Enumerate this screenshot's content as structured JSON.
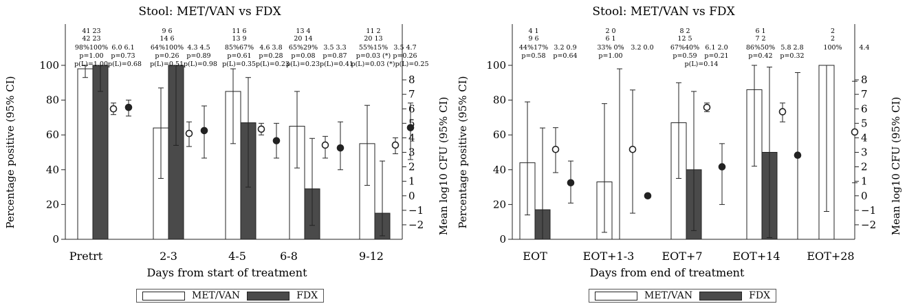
{
  "legend": {
    "series_a": "MET/VAN",
    "series_b": "FDX"
  },
  "chart_data": [
    {
      "type": "bar",
      "title": "Stool: MET/VAN vs FDX",
      "xlabel": "Days from start of treatment",
      "ylabel": "Percentage positive (95% CI)",
      "y2label": "Mean log10 CFU (95% CI)",
      "ylim": [
        0,
        100
      ],
      "y2lim": [
        -3,
        9
      ],
      "yticks": [
        "0",
        "20",
        "40",
        "60",
        "80",
        "100"
      ],
      "y2ticks": [
        "−2",
        "−1",
        "0",
        "1",
        "2",
        "3",
        "4",
        "5",
        "6",
        "7",
        "8"
      ],
      "categories": [
        "Pretrt",
        "2-3",
        "4-5",
        "6-8",
        "9-12"
      ],
      "series": [
        {
          "name": "MET/VAN",
          "values": [
            98,
            64,
            85,
            65,
            55
          ],
          "ci_low": [
            93,
            35,
            55,
            41,
            31
          ],
          "ci_high": [
            100,
            87,
            98,
            85,
            77
          ]
        },
        {
          "name": "FDX",
          "values": [
            100,
            100,
            67,
            29,
            15
          ],
          "ci_low": [
            85,
            54,
            30,
            8,
            2
          ],
          "ci_high": [
            100,
            100,
            93,
            58,
            45
          ]
        }
      ],
      "cfu": [
        {
          "name": "MET/VAN",
          "values": [
            6.0,
            4.3,
            4.6,
            3.5,
            3.5
          ],
          "ci_low": [
            5.6,
            3.4,
            4.2,
            2.6,
            2.9
          ],
          "ci_high": [
            6.4,
            5.1,
            5.0,
            4.1,
            4.0
          ]
        },
        {
          "name": "FDX",
          "values": [
            6.1,
            4.5,
            3.8,
            3.3,
            4.7
          ],
          "ci_low": [
            5.5,
            2.6,
            2.6,
            1.8,
            2.5
          ],
          "ci_high": [
            6.6,
            6.2,
            5.0,
            5.1,
            6.4
          ]
        }
      ],
      "annotations": [
        {
          "n": [
            "41 23",
            "42 23"
          ],
          "pct": "98%100%",
          "p": "p=1.00",
          "cfu": "6.0  6.1",
          "cfu_p": "p=0.73",
          "pl": "p(L)=1.00p(L)=0.68"
        },
        {
          "n": [
            "9  6",
            "14  6"
          ],
          "pct": "64%100%",
          "p": "p=0.26",
          "cfu": "4.3  4.5",
          "cfu_p": "p=0.89",
          "pl": "p(L)=0.51p(L)=0.98"
        },
        {
          "n": [
            "11  6",
            "13  9"
          ],
          "pct": "85%67%",
          "p": "p=0.61",
          "cfu": "4.6  3.8",
          "cfu_p": "p=0.28",
          "pl": "p(L)=0.35p(L)=0.23"
        },
        {
          "n": [
            "13  4",
            "20  14"
          ],
          "pct": "65%29%",
          "p": "p=0.08",
          "cfu": "3.5  3.3",
          "cfu_p": "p=0.87",
          "pl": "p(L)=0.23p(L)=0.41"
        },
        {
          "n": [
            "11  2",
            "20  13"
          ],
          "pct": "55%15%",
          "p": "p=0.03 (*)",
          "cfu": "3.5  4.7",
          "cfu_p": "p=0.26",
          "pl": "p(L)=0.03 (*)p(L)=0.25"
        }
      ],
      "grid": false,
      "legend_position": "bottom"
    },
    {
      "type": "bar",
      "title": "Stool: MET/VAN vs FDX",
      "xlabel": "Days from end of treatment",
      "ylabel": "Percentage positive (95% CI)",
      "y2label": "Mean log10 CFU (95% CI)",
      "ylim": [
        0,
        100
      ],
      "y2lim": [
        -3,
        9
      ],
      "yticks": [
        "0",
        "20",
        "40",
        "60",
        "80",
        "100"
      ],
      "y2ticks": [
        "−2",
        "−1",
        "0",
        "1",
        "2",
        "3",
        "4",
        "5",
        "6",
        "7",
        "8"
      ],
      "categories": [
        "EOT",
        "EOT+1-3",
        "EOT+7",
        "EOT+14",
        "EOT+28"
      ],
      "series": [
        {
          "name": "MET/VAN",
          "values": [
            44,
            33,
            67,
            86,
            100
          ],
          "ci_low": [
            14,
            4,
            35,
            42,
            16
          ],
          "ci_high": [
            79,
            78,
            90,
            100,
            100
          ]
        },
        {
          "name": "FDX",
          "values": [
            17,
            0,
            40,
            50,
            null
          ],
          "ci_low": [
            0,
            0,
            5,
            1,
            null
          ],
          "ci_high": [
            64,
            98,
            85,
            99,
            null
          ]
        }
      ],
      "cfu": [
        {
          "name": "MET/VAN",
          "values": [
            3.2,
            3.2,
            6.1,
            5.8,
            4.4
          ],
          "ci_low": [
            1.6,
            -1.2,
            5.8,
            5.1,
            0.9
          ],
          "ci_high": [
            4.7,
            7.3,
            6.4,
            6.4,
            7.9
          ]
        },
        {
          "name": "FDX",
          "values": [
            0.9,
            0.0,
            2.0,
            2.8,
            null
          ],
          "ci_low": [
            -0.5,
            null,
            -0.6,
            -3.0,
            null
          ],
          "ci_high": [
            2.4,
            null,
            3.6,
            8.5,
            null
          ]
        }
      ],
      "annotations": [
        {
          "n": [
            "4  1",
            "9  6"
          ],
          "pct": "44%17%",
          "p": "p=0.58",
          "cfu": "3.2  0.9",
          "cfu_p": "p=0.64",
          "pl": ""
        },
        {
          "n": [
            "2  0",
            "6  1"
          ],
          "pct": "33%  0%",
          "p": "p=1.00",
          "cfu": "3.2  0.0",
          "cfu_p": "",
          "pl": ""
        },
        {
          "n": [
            "8  2",
            "12  5"
          ],
          "pct": "67%40%",
          "p": "p=0.59",
          "cfu": "6.1  2.0",
          "cfu_p": "p=0.21",
          "pl": "p(L)=0.14"
        },
        {
          "n": [
            "6  1",
            "7  2"
          ],
          "pct": "86%50%",
          "p": "p=0.42",
          "cfu": "5.8  2.8",
          "cfu_p": "p=0.32",
          "pl": ""
        },
        {
          "n": [
            "2",
            "2"
          ],
          "pct": "100%",
          "p": "",
          "cfu": "4.4",
          "cfu_p": "",
          "pl": ""
        }
      ],
      "grid": false,
      "legend_position": "bottom"
    }
  ]
}
